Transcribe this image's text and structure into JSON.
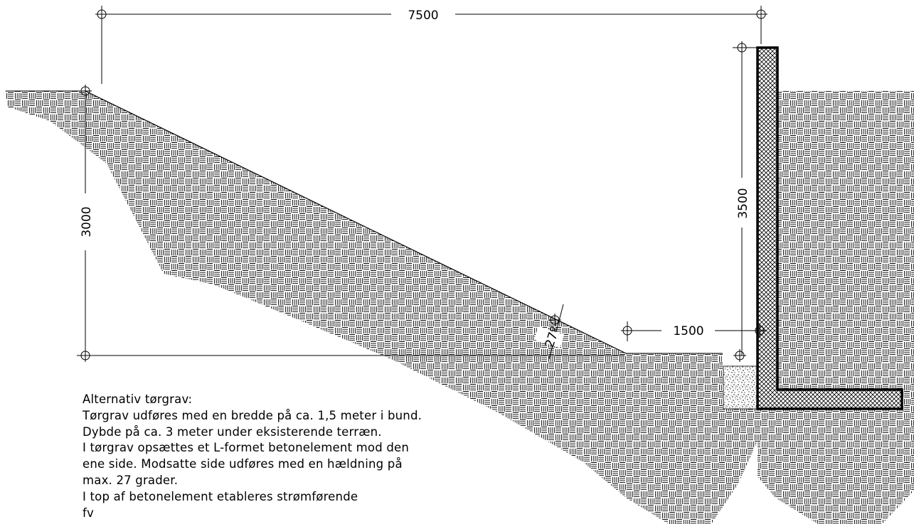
{
  "dimensions": {
    "top_width": "7500",
    "left_depth": "3000",
    "right_height": "3500",
    "bottom_width": "1500",
    "slope_angle": "27º"
  },
  "note": {
    "lines": [
      "Alternativ tørgrav:",
      "Tørgrav udføres med en bredde på ca. 1,5 meter i bund.",
      "Dybde på ca. 3 meter under eksisterende terræn.",
      "I tørgrav opsættes et L-formet betonelement mod den",
      "ene side. Modsatte side udføres med en hældning på",
      "max. 27 grader.",
      "I top af betonelement etableres strømførende",
      "fv"
    ]
  }
}
